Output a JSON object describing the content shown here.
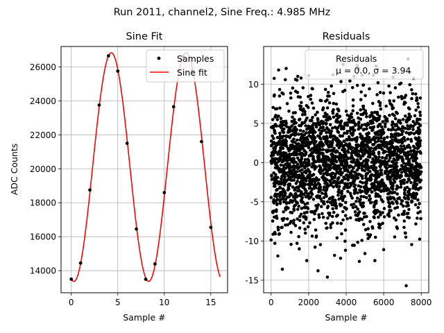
{
  "figure": {
    "title": "Run 2011, channel2, Sine Freq.: 4.985 MHz"
  },
  "chart_data": [
    {
      "type": "line",
      "title": "Sine Fit",
      "xlabel": "Sample #",
      "ylabel": "ADC Counts",
      "xlim": [
        -1.1,
        16.8
      ],
      "ylim": [
        12700,
        27200
      ],
      "xticks": [
        0,
        5,
        10,
        15
      ],
      "yticks": [
        14000,
        16000,
        18000,
        20000,
        22000,
        24000,
        26000
      ],
      "grid": true,
      "legend": {
        "position": "top-right",
        "entries": [
          "Samples",
          "Sine fit"
        ]
      },
      "series": [
        {
          "name": "Samples",
          "kind": "scatter",
          "color": "#000000",
          "x": [
            0,
            1,
            2,
            3,
            4,
            5,
            6,
            7,
            8,
            9,
            10,
            11,
            12,
            13,
            14,
            15
          ],
          "y": [
            13500,
            14450,
            18750,
            23750,
            26650,
            25750,
            21500,
            16450,
            13500,
            14400,
            18600,
            23650,
            26600,
            25750,
            21600,
            16550
          ]
        },
        {
          "name": "Sine fit",
          "kind": "line",
          "color": "#ff0000",
          "function": {
            "offset": 20100,
            "amplitude": 6730,
            "period": 8.04,
            "x_peak": 4.3,
            "x_range": [
              0,
              16
            ]
          }
        }
      ]
    },
    {
      "type": "scatter",
      "title": "Residuals",
      "xlabel": "Sample #",
      "ylabel": "",
      "xlim": [
        -400,
        8400
      ],
      "ylim": [
        -16.6,
        14.8
      ],
      "xticks": [
        0,
        2000,
        4000,
        6000,
        8000
      ],
      "yticks": [
        -15,
        -10,
        -5,
        0,
        5,
        10
      ],
      "grid": true,
      "legend": {
        "position": "top-right",
        "entries": [
          "Residuals",
          "μ = 0.0, σ = 3.94"
        ]
      },
      "series": [
        {
          "name": "Residuals",
          "color": "#000000",
          "distribution": {
            "count": 8000,
            "mean": 0.0,
            "std": 3.94,
            "x_range": [
              0,
              8000
            ]
          },
          "highlighted_points": [
            [
              7200,
              -15.7
            ],
            [
              3000,
              -14.6
            ],
            [
              2500,
              -13.8
            ],
            [
              600,
              -13.6
            ],
            [
              4700,
              -12.6
            ],
            [
              3700,
              -12.2
            ],
            [
              7300,
              13.2
            ],
            [
              5600,
              12.3
            ],
            [
              800,
              12.0
            ],
            [
              400,
              11.8
            ],
            [
              7400,
              11.5
            ],
            [
              2000,
              11.1
            ],
            [
              3300,
              11.2
            ],
            [
              6500,
              10.9
            ],
            [
              1300,
              10.6
            ],
            [
              4200,
              10.4
            ],
            [
              5000,
              -11.6
            ],
            [
              6000,
              -11.1
            ],
            [
              1500,
              -11.0
            ],
            [
              200,
              -10.3
            ]
          ]
        }
      ]
    }
  ]
}
